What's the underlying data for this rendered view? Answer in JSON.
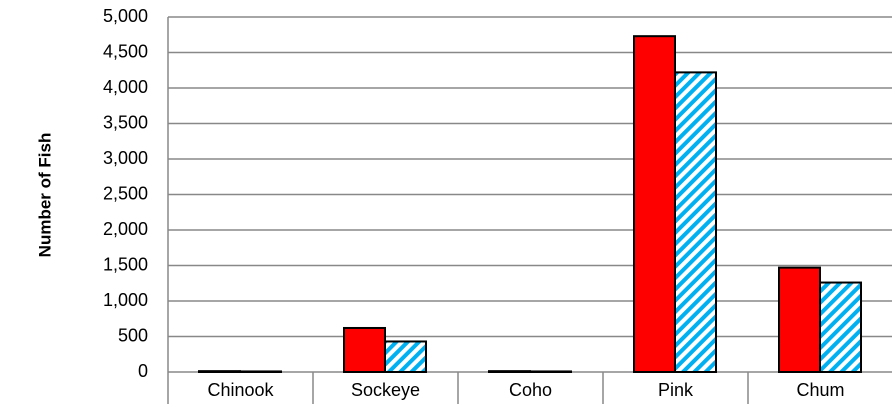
{
  "chart_data": {
    "type": "bar",
    "y_label": "Number of Fish",
    "categories": [
      "Chinook",
      "Sockeye",
      "Coho",
      "Pink",
      "Chum"
    ],
    "series": [
      {
        "color": "#ff0000",
        "values": [
          12,
          620,
          12,
          4730,
          1470
        ]
      },
      {
        "color": "#00b0f0",
        "pattern": "diagonal-stripes",
        "values": [
          8,
          430,
          8,
          4220,
          1260
        ]
      }
    ],
    "ylim": [
      0,
      5000
    ],
    "yticks": [
      0,
      500,
      {
        "value": 1000,
        "label": "1,000"
      },
      {
        "value": 1500,
        "label": "1,500"
      },
      {
        "value": 2000,
        "label": "2,000"
      },
      {
        "value": 2500,
        "label": "2,500"
      },
      {
        "value": 3000,
        "label": "3,000"
      },
      {
        "value": 3500,
        "label": "3,500"
      },
      {
        "value": 4000,
        "label": "4,000"
      },
      {
        "value": 4500,
        "label": "4,500"
      },
      {
        "value": 5000,
        "label": "5,000"
      }
    ],
    "grid": true
  }
}
